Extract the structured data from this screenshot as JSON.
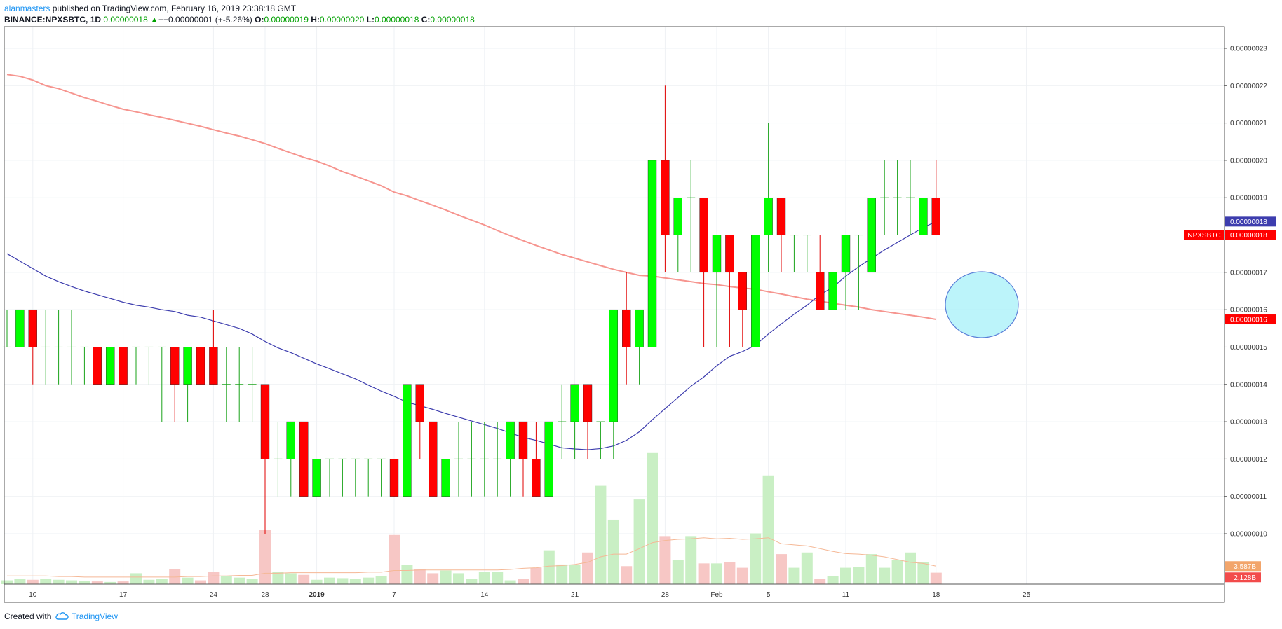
{
  "header": {
    "author": "alanmasters",
    "published": "published on TradingView.com, February 16, 2019 23:38:18 GMT",
    "symbol": "BINANCE:NPXSBTC, 1D",
    "last": "0.00000018",
    "arrow": "▲",
    "change": "+−0.00000001 (+-5.26%)",
    "o_label": "O:",
    "o_value": "0.00000019",
    "h_label": "H:",
    "h_value": "0.00000020",
    "l_label": "L:",
    "l_value": "0.00000018",
    "c_label": "C:",
    "c_value": "0.00000018"
  },
  "footer": {
    "created_with": "Created with",
    "brand": "TradingView",
    "logo_icon": "tradingview-cloud-icon"
  },
  "colors": {
    "up": "#00ff00",
    "down": "#ff0000",
    "ma_fast": "#3d3dae",
    "ma_slow": "#f6958f",
    "vol_up": "#c9efc4",
    "vol_down": "#f7c7c5",
    "vol_ma": "#f5b896",
    "grid": "#eef1f4",
    "highlight": "#7fe3f2"
  },
  "tags": {
    "symbol_label": "NPXSBTC",
    "price": "0.00000018",
    "ma_fast": "0.00000018",
    "ma_slow": "0.00000016",
    "vol_ma": "3.587B",
    "volume": "2.128B"
  },
  "chart_data": {
    "type": "candlestick",
    "symbol": "BINANCE:NPXSBTC",
    "interval": "1D",
    "yaxis_ticks": [
      "0.00000010",
      "0.00000011",
      "0.00000012",
      "0.00000013",
      "0.00000014",
      "0.00000015",
      "0.00000016",
      "0.00000017",
      "0.00000018",
      "0.00000019",
      "0.00000020",
      "0.00000021",
      "0.00000022",
      "0.00000023"
    ],
    "yaxis_units": "1e-8 BTC",
    "ylim": [
      9.7,
      23.3
    ],
    "xaxis_ticks": [
      {
        "i": 2,
        "label": "10"
      },
      {
        "i": 9,
        "label": "17"
      },
      {
        "i": 16,
        "label": "24"
      },
      {
        "i": 20,
        "label": "28"
      },
      {
        "i": 24,
        "label": "2019"
      },
      {
        "i": 30,
        "label": "7"
      },
      {
        "i": 37,
        "label": "14"
      },
      {
        "i": 44,
        "label": "21"
      },
      {
        "i": 51,
        "label": "28"
      },
      {
        "i": 55,
        "label": "Feb"
      },
      {
        "i": 59,
        "label": "5"
      },
      {
        "i": 65,
        "label": "11"
      },
      {
        "i": 72,
        "label": "18"
      },
      {
        "i": 79,
        "label": "25"
      }
    ],
    "candles": [
      [
        15,
        16,
        15,
        15
      ],
      [
        15,
        16,
        15,
        16
      ],
      [
        16,
        16,
        14,
        15
      ],
      [
        15,
        16,
        14,
        15
      ],
      [
        15,
        16,
        14,
        15
      ],
      [
        15,
        16,
        14,
        15
      ],
      [
        15,
        15,
        14,
        15
      ],
      [
        15,
        15,
        14,
        14
      ],
      [
        14,
        15,
        14,
        15
      ],
      [
        15,
        15,
        14,
        14
      ],
      [
        15,
        15,
        14,
        15
      ],
      [
        15,
        15,
        14,
        15
      ],
      [
        15,
        15,
        13,
        15
      ],
      [
        15,
        15,
        13,
        14
      ],
      [
        14,
        15,
        13,
        15
      ],
      [
        15,
        15,
        14,
        14
      ],
      [
        15,
        16,
        14,
        14
      ],
      [
        14,
        15,
        13,
        14
      ],
      [
        14,
        15,
        13,
        14
      ],
      [
        14,
        15,
        13,
        14
      ],
      [
        14,
        14,
        10,
        12
      ],
      [
        12,
        13,
        11,
        12
      ],
      [
        12,
        13,
        11,
        13
      ],
      [
        13,
        13,
        11,
        11
      ],
      [
        11,
        12,
        11,
        12
      ],
      [
        12,
        12,
        11,
        12
      ],
      [
        12,
        12,
        11,
        12
      ],
      [
        12,
        12,
        11,
        12
      ],
      [
        12,
        12,
        11,
        12
      ],
      [
        12,
        12,
        11,
        12
      ],
      [
        12,
        12,
        11,
        11
      ],
      [
        11,
        14,
        11,
        14
      ],
      [
        14,
        14,
        12,
        13
      ],
      [
        13,
        13,
        11,
        11
      ],
      [
        11,
        12,
        11,
        12
      ],
      [
        12,
        13,
        11,
        12
      ],
      [
        12,
        13,
        11,
        12
      ],
      [
        12,
        13,
        11,
        12
      ],
      [
        12,
        13,
        11,
        12
      ],
      [
        12,
        13,
        11,
        13
      ],
      [
        13,
        13,
        11,
        12
      ],
      [
        12,
        13,
        11,
        11
      ],
      [
        11,
        13,
        11,
        13
      ],
      [
        13,
        14,
        12,
        13
      ],
      [
        13,
        14,
        12,
        14
      ],
      [
        14,
        14,
        12,
        13
      ],
      [
        13,
        13,
        12,
        13
      ],
      [
        13,
        16,
        12,
        16
      ],
      [
        16,
        17,
        14,
        15
      ],
      [
        15,
        16,
        14,
        16
      ],
      [
        15,
        20,
        15,
        20
      ],
      [
        20,
        22,
        17,
        18
      ],
      [
        18,
        19,
        17,
        19
      ],
      [
        19,
        20,
        17,
        19
      ],
      [
        19,
        19,
        15,
        17
      ],
      [
        17,
        18,
        15,
        18
      ],
      [
        18,
        18,
        15,
        17
      ],
      [
        17,
        17,
        15,
        16
      ],
      [
        15,
        18,
        15,
        18
      ],
      [
        18,
        21,
        17,
        19
      ],
      [
        19,
        19,
        17,
        18
      ],
      [
        18,
        18,
        17,
        18
      ],
      [
        18,
        18,
        17,
        18
      ],
      [
        17,
        18,
        16,
        16
      ],
      [
        16,
        17,
        16,
        17
      ],
      [
        17,
        18,
        16,
        18
      ],
      [
        18,
        18,
        16,
        18
      ],
      [
        17,
        19,
        17,
        19
      ],
      [
        19,
        20,
        18,
        19
      ],
      [
        19,
        20,
        18,
        19
      ],
      [
        19,
        20,
        18,
        19
      ],
      [
        18,
        19,
        18,
        19
      ],
      [
        19,
        20,
        18,
        18
      ]
    ],
    "ma_fast": [
      17.5,
      17.3,
      17.1,
      16.9,
      16.75,
      16.62,
      16.5,
      16.4,
      16.3,
      16.2,
      16.12,
      16.07,
      16.0,
      15.95,
      15.85,
      15.8,
      15.7,
      15.6,
      15.5,
      15.35,
      15.15,
      14.98,
      14.85,
      14.7,
      14.55,
      14.42,
      14.28,
      14.15,
      13.98,
      13.82,
      13.68,
      13.52,
      13.43,
      13.33,
      13.22,
      13.12,
      13.02,
      12.92,
      12.82,
      12.7,
      12.58,
      12.5,
      12.4,
      12.3,
      12.27,
      12.25,
      12.28,
      12.35,
      12.5,
      12.73,
      13.05,
      13.35,
      13.65,
      13.95,
      14.2,
      14.5,
      14.75,
      14.88,
      15.05,
      15.35,
      15.62,
      15.88,
      16.12,
      16.4,
      16.6,
      16.9,
      17.15,
      17.38,
      17.6,
      17.8,
      18.0,
      18.2,
      18.36
    ],
    "ma_slow": [
      22.3,
      22.25,
      22.15,
      22.0,
      21.92,
      21.8,
      21.68,
      21.58,
      21.47,
      21.37,
      21.3,
      21.22,
      21.15,
      21.07,
      20.99,
      20.91,
      20.82,
      20.73,
      20.65,
      20.55,
      20.45,
      20.32,
      20.2,
      20.08,
      19.98,
      19.85,
      19.7,
      19.58,
      19.45,
      19.32,
      19.15,
      19.05,
      18.92,
      18.8,
      18.67,
      18.53,
      18.4,
      18.27,
      18.12,
      17.98,
      17.85,
      17.72,
      17.6,
      17.48,
      17.38,
      17.28,
      17.18,
      17.08,
      17.0,
      16.92,
      16.9,
      16.85,
      16.8,
      16.75,
      16.7,
      16.67,
      16.62,
      16.58,
      16.55,
      16.48,
      16.42,
      16.35,
      16.28,
      16.23,
      16.17,
      16.12,
      16.07,
      16.0,
      15.95,
      15.9,
      15.85,
      15.8,
      15.74
    ],
    "volume": [
      0.07,
      0.1,
      0.08,
      0.09,
      0.08,
      0.07,
      0.06,
      0.05,
      0.04,
      0.05,
      0.2,
      0.08,
      0.1,
      0.28,
      0.12,
      0.07,
      0.22,
      0.15,
      0.12,
      0.1,
      1.0,
      0.22,
      0.2,
      0.17,
      0.08,
      0.12,
      0.11,
      0.09,
      0.12,
      0.15,
      0.9,
      0.35,
      0.28,
      0.2,
      0.25,
      0.2,
      0.1,
      0.22,
      0.22,
      0.07,
      0.1,
      0.3,
      0.62,
      0.36,
      0.36,
      0.58,
      1.8,
      1.18,
      0.33,
      1.55,
      2.4,
      0.88,
      0.44,
      0.88,
      0.38,
      0.38,
      0.41,
      0.3,
      0.93,
      1.99,
      0.55,
      0.3,
      0.58,
      0.1,
      0.15,
      0.3,
      0.31,
      0.55,
      0.3,
      0.44,
      0.58,
      0.41,
      0.21
    ],
    "volume_ma": [
      0.15,
      0.15,
      0.15,
      0.15,
      0.14,
      0.14,
      0.13,
      0.13,
      0.13,
      0.13,
      0.13,
      0.13,
      0.13,
      0.13,
      0.14,
      0.14,
      0.15,
      0.15,
      0.16,
      0.16,
      0.2,
      0.2,
      0.21,
      0.21,
      0.21,
      0.21,
      0.21,
      0.21,
      0.22,
      0.22,
      0.25,
      0.25,
      0.26,
      0.26,
      0.26,
      0.26,
      0.26,
      0.26,
      0.26,
      0.27,
      0.29,
      0.3,
      0.33,
      0.34,
      0.36,
      0.4,
      0.5,
      0.55,
      0.55,
      0.65,
      0.76,
      0.8,
      0.82,
      0.83,
      0.85,
      0.83,
      0.84,
      0.82,
      0.83,
      0.85,
      0.74,
      0.72,
      0.7,
      0.65,
      0.6,
      0.56,
      0.55,
      0.53,
      0.5,
      0.45,
      0.4,
      0.38,
      0.33
    ]
  }
}
